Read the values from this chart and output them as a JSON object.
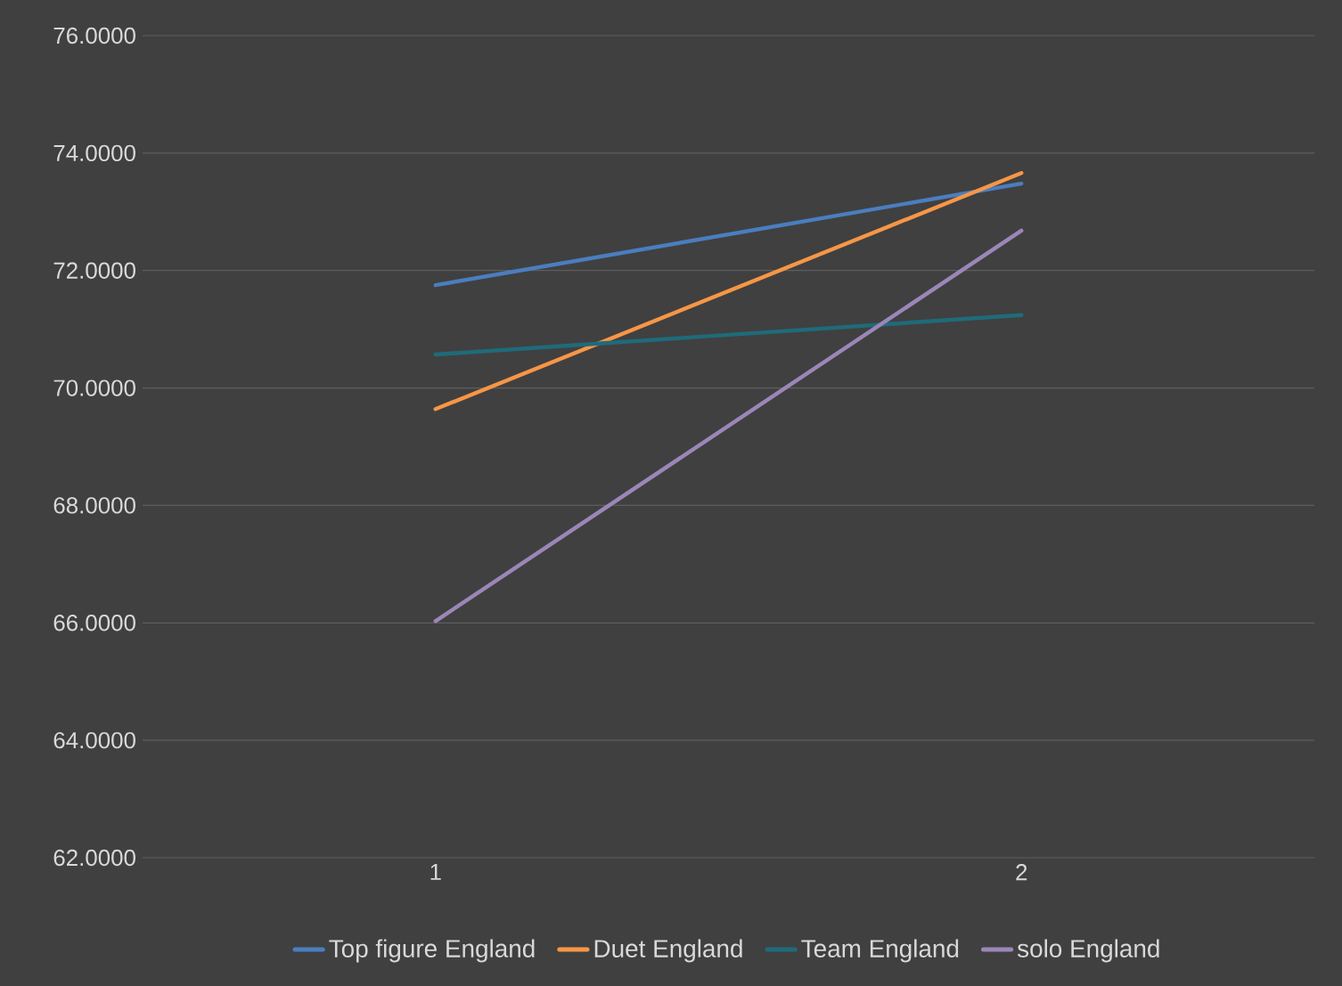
{
  "chart_data": {
    "type": "line",
    "categories": [
      "1",
      "2"
    ],
    "series": [
      {
        "name": "Top figure England",
        "color": "#4a7ebf",
        "values": [
          71.75,
          73.48
        ]
      },
      {
        "name": "Duet England",
        "color": "#f79646",
        "values": [
          69.64,
          73.66
        ]
      },
      {
        "name": "Team England",
        "color": "#1f6b7a",
        "values": [
          70.57,
          71.24
        ]
      },
      {
        "name": "solo England",
        "color": "#9b86b8",
        "values": [
          66.03,
          72.68
        ]
      }
    ],
    "ylim": [
      62,
      76
    ],
    "yticks": [
      {
        "value": 62,
        "label": "62.0000"
      },
      {
        "value": 64,
        "label": "64.0000"
      },
      {
        "value": 66,
        "label": "66.0000"
      },
      {
        "value": 68,
        "label": "68.0000"
      },
      {
        "value": 70,
        "label": "70.0000"
      },
      {
        "value": 72,
        "label": "72.0000"
      },
      {
        "value": 74,
        "label": "74.0000"
      },
      {
        "value": 76,
        "label": "76.0000"
      }
    ],
    "grid": "y",
    "legend": "bottom",
    "marker": "none",
    "line_style": "solid"
  }
}
